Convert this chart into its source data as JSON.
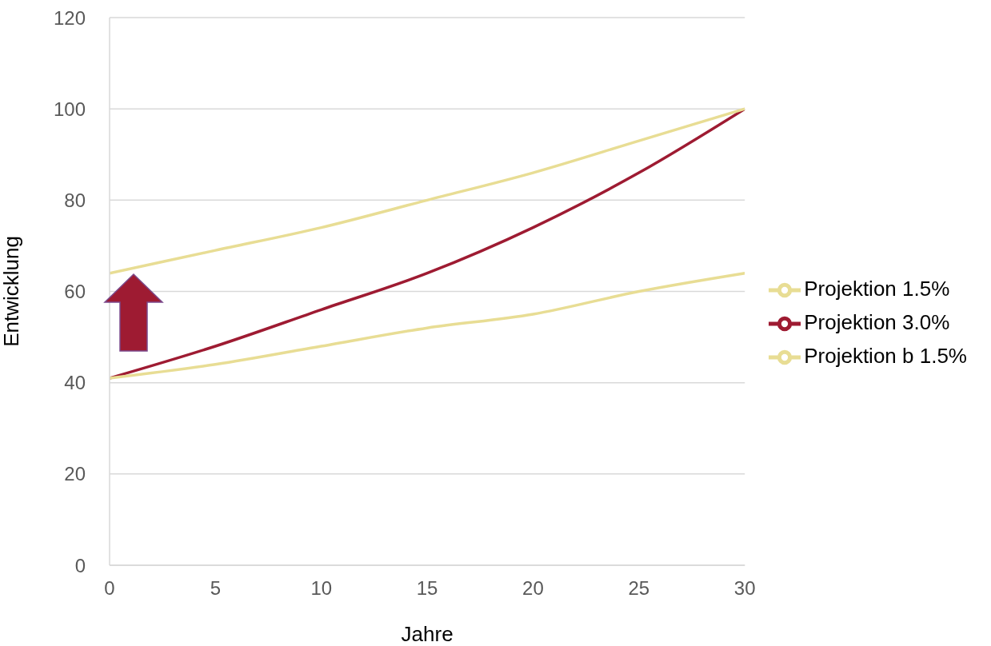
{
  "chart_data": {
    "type": "line",
    "xlabel": "Jahre",
    "ylabel": "Entwicklung",
    "x": [
      0,
      5,
      10,
      15,
      20,
      25,
      30
    ],
    "series": [
      {
        "name": "Projektion 3.0%",
        "color": "#9e1b32",
        "values": [
          41,
          48,
          56,
          64,
          74,
          86,
          100
        ]
      },
      {
        "name": "Projektion 1.5%",
        "color": "#e8dd94",
        "values": [
          64,
          69,
          74,
          80,
          86,
          93,
          100
        ]
      },
      {
        "name": "Projektion b 1.5%",
        "color": "#e8dd94",
        "values": [
          41,
          44,
          48,
          52,
          55,
          60,
          64
        ]
      }
    ],
    "xlim": [
      0,
      30
    ],
    "xticks": [
      0,
      5,
      10,
      15,
      20,
      25,
      30
    ],
    "ylim": [
      0,
      120
    ],
    "yticks": [
      0,
      20,
      40,
      60,
      80,
      100,
      120
    ],
    "grid": "y",
    "legend": "right",
    "marker": "none",
    "line_style": "solid"
  }
}
